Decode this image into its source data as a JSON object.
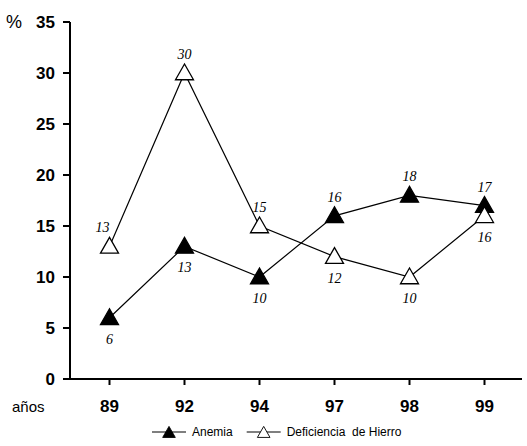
{
  "chart_data": {
    "type": "line",
    "y_label": "%",
    "x_label": "años",
    "categories": [
      "89",
      "92",
      "94",
      "97",
      "98",
      "99"
    ],
    "series": [
      {
        "name": "Anemia",
        "color": "#000000",
        "marker": "triangle",
        "values": [
          6,
          13,
          10,
          16,
          18,
          17
        ]
      },
      {
        "name": "Deficiencia  de Hierro",
        "color": "#000000",
        "marker": "triangle-open",
        "values": [
          13,
          30,
          15,
          12,
          10,
          16
        ]
      }
    ],
    "ylim": [
      0,
      35
    ],
    "yticks": [
      0,
      5,
      10,
      15,
      20,
      25,
      30,
      35
    ],
    "grid": false,
    "legend": "bottom",
    "data_labels": true
  }
}
